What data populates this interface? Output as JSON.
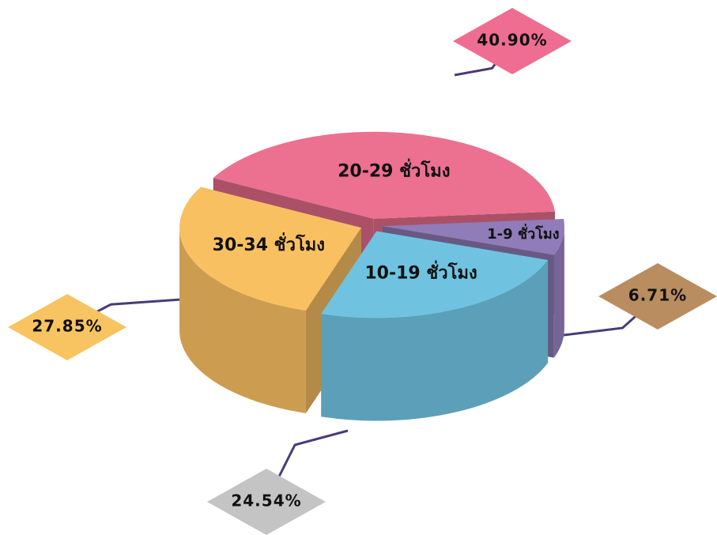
{
  "chart_data": {
    "type": "pie",
    "categories": [
      "20-29 ชั่วโมง",
      "1-9 ชั่วโมง",
      "10-19 ชั่วโมง",
      "30-34 ชั่วโมง"
    ],
    "values": [
      40.9,
      6.71,
      24.54,
      27.85
    ],
    "value_labels": [
      "40.90%",
      "6.71%",
      "24.54%",
      "27.85%"
    ],
    "colors": [
      "#ec7090",
      "#8f7cb8",
      "#6fc3e0",
      "#f9c062"
    ],
    "label_colors": [
      "#ee6d91",
      "#b98d60",
      "#c4c4c4",
      "#f8c461"
    ]
  }
}
